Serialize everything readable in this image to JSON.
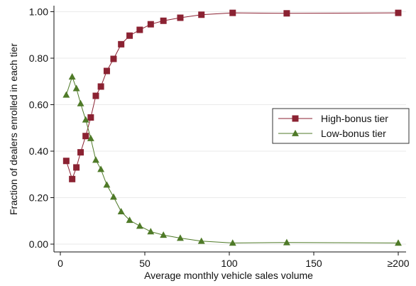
{
  "chart_data": {
    "type": "line",
    "title": "",
    "xlabel": "Average monthly vehicle sales volume",
    "ylabel": "Fraction of dealers enrolled in each tier",
    "xlim": [
      0,
      200
    ],
    "ylim": [
      0,
      1
    ],
    "x_ticks": [
      {
        "value": 0,
        "label": "0"
      },
      {
        "value": 50,
        "label": "50"
      },
      {
        "value": 100,
        "label": "100"
      },
      {
        "value": 150,
        "label": "150"
      },
      {
        "value": 200,
        "label": "≥200"
      }
    ],
    "y_ticks": [
      {
        "value": 0,
        "label": "0.00"
      },
      {
        "value": 0.2,
        "label": "0.20"
      },
      {
        "value": 0.4,
        "label": "0.40"
      },
      {
        "value": 0.6,
        "label": "0.60"
      },
      {
        "value": 0.8,
        "label": "0.80"
      },
      {
        "value": 1.0,
        "label": "1.00"
      }
    ],
    "grid": "horizontal",
    "legend_position": "right",
    "series": [
      {
        "name": "High-bonus tier",
        "color": "#8b2232",
        "marker": "square",
        "x": [
          3.5,
          7,
          9.5,
          12,
          15,
          18,
          21,
          24,
          27.5,
          31.5,
          36,
          41,
          47,
          53.5,
          61,
          71,
          83.5,
          102,
          134,
          200
        ],
        "y": [
          0.358,
          0.28,
          0.33,
          0.395,
          0.465,
          0.545,
          0.638,
          0.678,
          0.745,
          0.797,
          0.86,
          0.897,
          0.922,
          0.946,
          0.961,
          0.974,
          0.987,
          0.995,
          0.993,
          0.995
        ]
      },
      {
        "name": "Low-bonus tier",
        "color": "#4f7a28",
        "marker": "triangle",
        "x": [
          3.5,
          7,
          9.5,
          12,
          15,
          18,
          21,
          24,
          27.5,
          31.5,
          36,
          41,
          47,
          53.5,
          61,
          71,
          83.5,
          102,
          134,
          200
        ],
        "y": [
          0.642,
          0.72,
          0.67,
          0.605,
          0.535,
          0.455,
          0.362,
          0.322,
          0.255,
          0.203,
          0.14,
          0.103,
          0.078,
          0.054,
          0.039,
          0.026,
          0.013,
          0.005,
          0.007,
          0.005
        ]
      }
    ]
  }
}
